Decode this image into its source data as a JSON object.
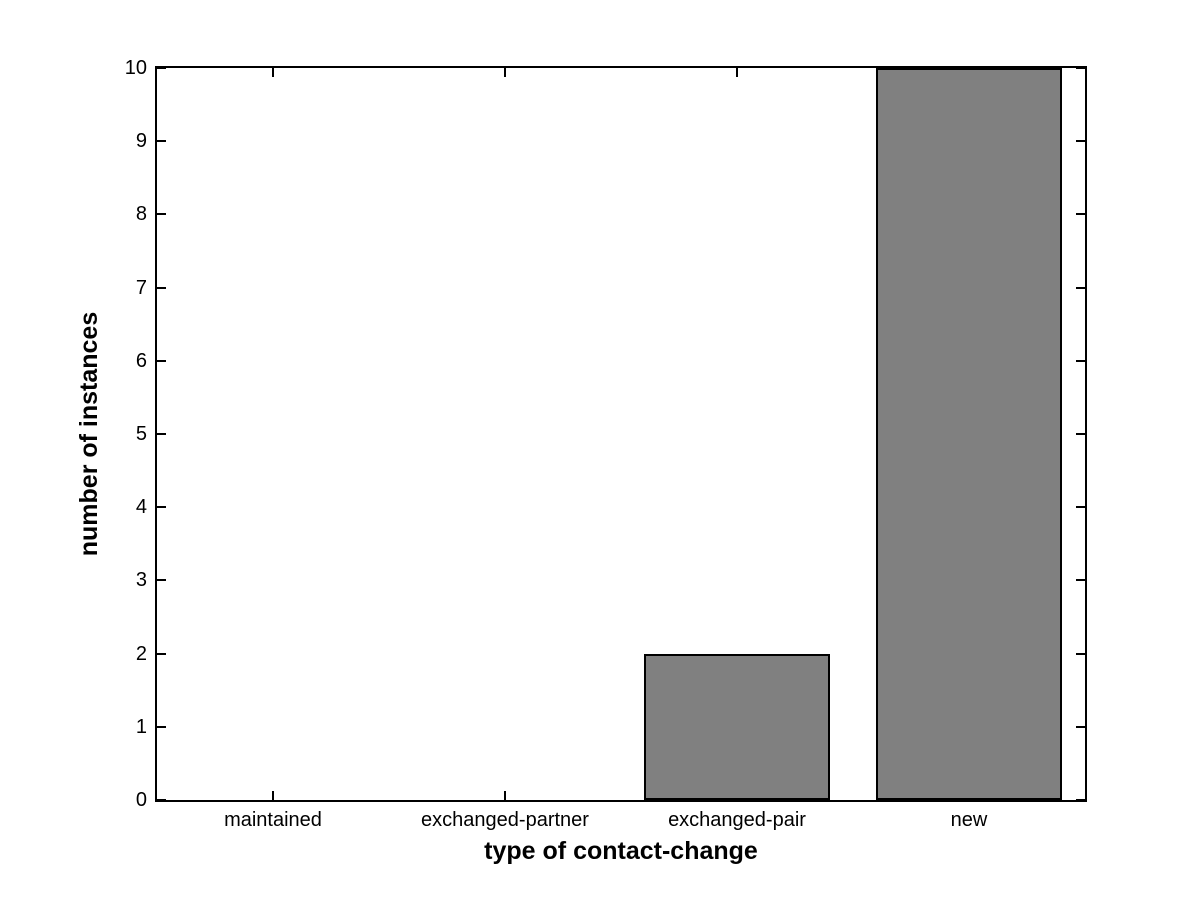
{
  "chart_data": {
    "type": "bar",
    "categories": [
      "maintained",
      "exchanged-partner",
      "exchanged-pair",
      "new"
    ],
    "values": [
      0,
      0,
      2,
      10
    ],
    "xlabel": "type of contact-change",
    "ylabel": "number of instances",
    "ylim": [
      0,
      10
    ],
    "yticks": [
      0,
      1,
      2,
      3,
      4,
      5,
      6,
      7,
      8,
      9,
      10
    ],
    "bar_width_fraction": 0.8,
    "grid": false,
    "legend": false,
    "colors": {
      "bar_fill": "#808080",
      "bar_edge": "#000000",
      "axis": "#000000",
      "background": "#ffffff",
      "text": "#000000"
    }
  }
}
